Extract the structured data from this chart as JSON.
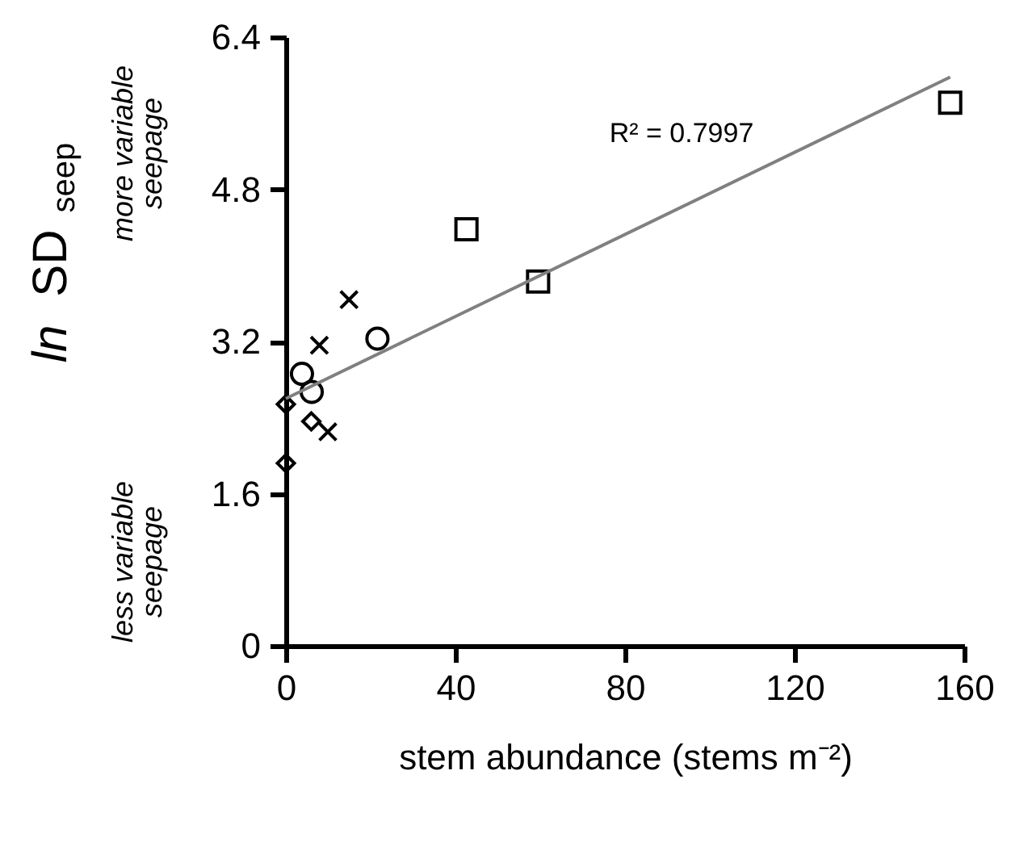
{
  "chart_data": {
    "type": "scatter",
    "xlabel": "stem abundance (stems m⁻²)",
    "ylabel": "ln SD$_{seep}$",
    "xlim": [
      0,
      160
    ],
    "xticks": [
      0,
      40,
      80,
      120,
      160
    ],
    "ylim": [
      0,
      6.4
    ],
    "yticks": [
      0,
      1.6,
      3.2,
      4.8,
      6.4
    ],
    "grid": false,
    "legend": false,
    "series": [
      {
        "color": "#000000",
        "marker": "square",
        "x": [
          156.7,
          42.6,
          59.5
        ],
        "values": [
          5.71,
          4.38,
          3.83
        ]
      },
      {
        "color": "#000000",
        "marker": "cross",
        "x": [
          14.9,
          7.9,
          9.9
        ],
        "values": [
          3.64,
          3.16,
          2.25
        ]
      },
      {
        "color": "#000000",
        "marker": "circle",
        "x": [
          21.6,
          3.8,
          6.1
        ],
        "values": [
          3.23,
          2.86,
          2.67
        ]
      },
      {
        "color": "#000000",
        "marker": "diamond",
        "x": [
          0,
          6.0,
          0
        ],
        "values": [
          2.54,
          2.36,
          1.92
        ]
      },
      {
        "type": "line",
        "color": "#808080",
        "marker": "none",
        "line_style": "solid",
        "x": [
          0,
          156.7
        ],
        "values": [
          2.6,
          5.98
        ]
      }
    ],
    "annotations": [
      "R² = 0.7997",
      "more variable\nseepage",
      "less variable\nseepage"
    ]
  }
}
